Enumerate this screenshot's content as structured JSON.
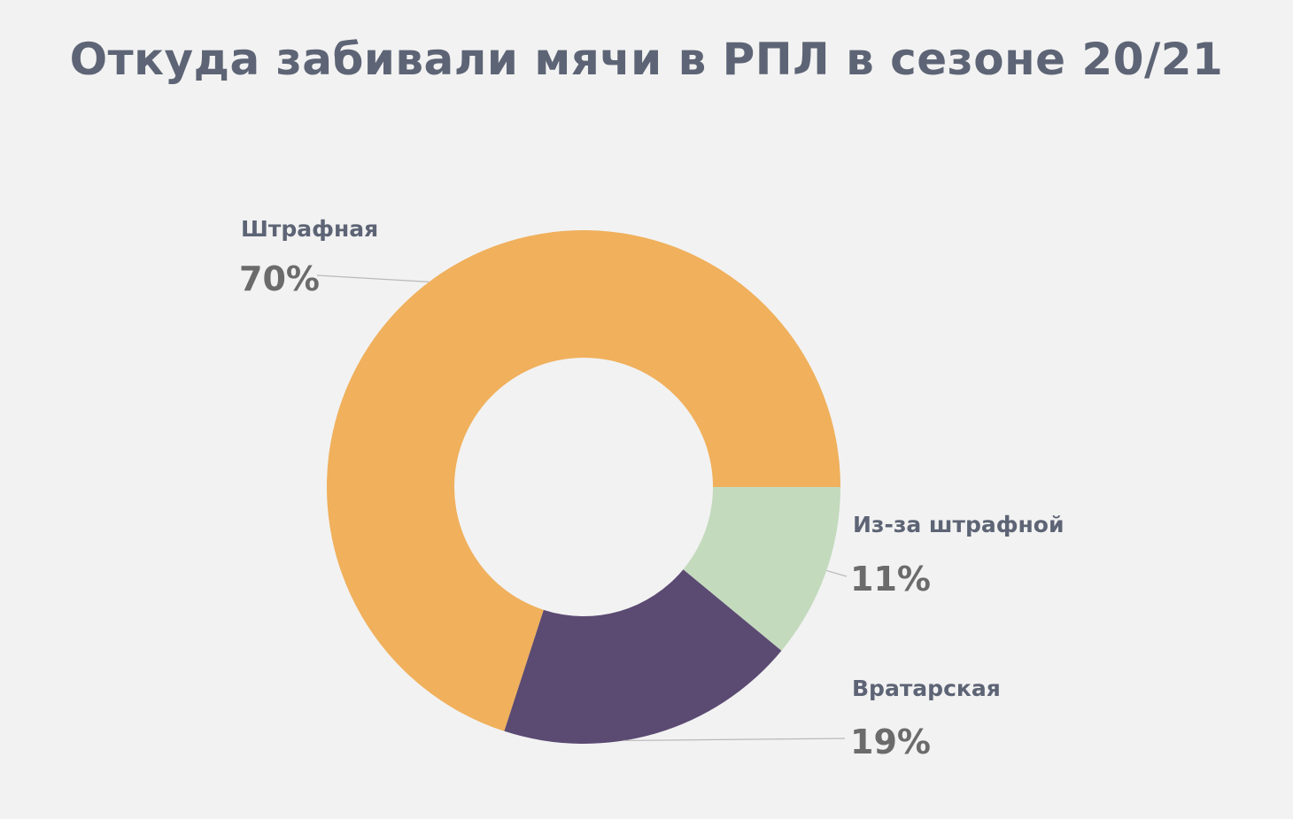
{
  "chart_data": {
    "type": "pie",
    "style": "donut",
    "title": "Откуда забивали мячи в РПЛ в сезоне 20/21",
    "slices": [
      {
        "label": "Штрафная",
        "value": 70,
        "display": "70%",
        "color": "#f0b05c"
      },
      {
        "label": "Вратарская",
        "value": 19,
        "display": "19%",
        "color": "#5b4a72"
      },
      {
        "label": "Из-за штрафной",
        "value": 11,
        "display": "11%",
        "color": "#c3dabd"
      }
    ],
    "legend": "none",
    "labels": "outside-with-leader-lines"
  }
}
